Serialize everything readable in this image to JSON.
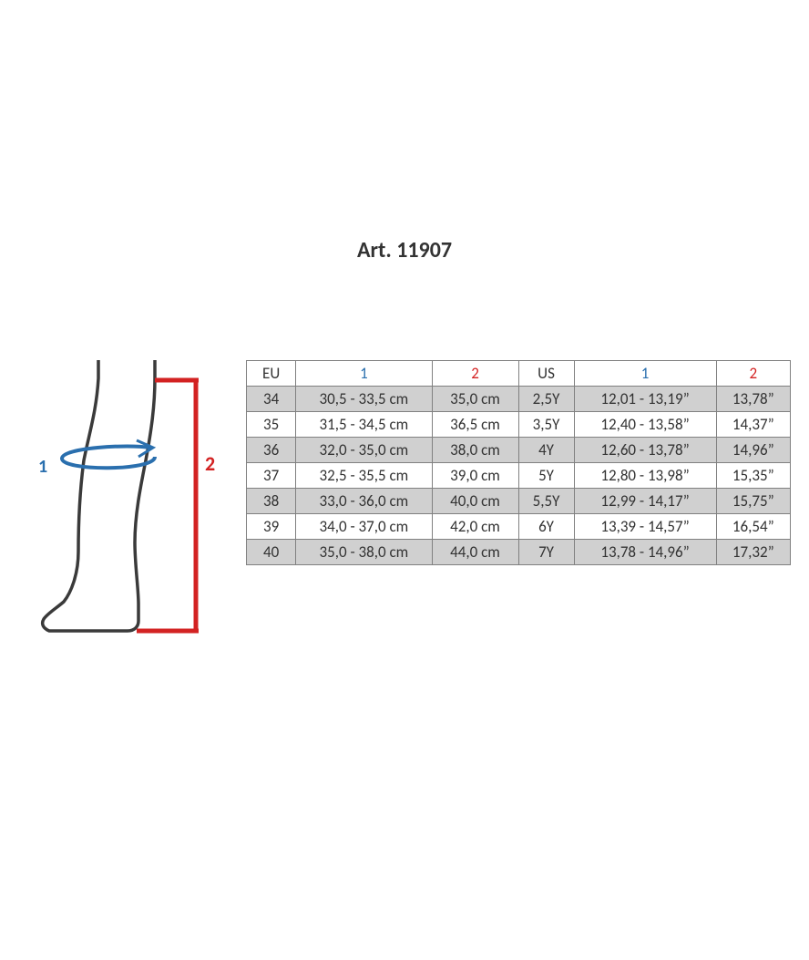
{
  "title": "Art. 11907",
  "diagram": {
    "label1": "1",
    "label2": "2",
    "outline_color": "#3a3a3a",
    "arrow_color": "#2a6fae",
    "height_color": "#d32222"
  },
  "table": {
    "header_text_color": "#333333",
    "header_blue": "#2a6fae",
    "header_red": "#d32222",
    "border_color": "#808080",
    "row_shade": "#d0d0d0",
    "columns": [
      {
        "label": "EU",
        "class": ""
      },
      {
        "label": "1",
        "class": "hdr-blue"
      },
      {
        "label": "2",
        "class": "hdr-red"
      },
      {
        "label": "US",
        "class": ""
      },
      {
        "label": "1",
        "class": "hdr-blue"
      },
      {
        "label": "2",
        "class": "hdr-red"
      }
    ],
    "rows": [
      {
        "shaded": true,
        "cells": [
          "34",
          "30,5 - 33,5 cm",
          "35,0 cm",
          "2,5Y",
          "12,01 - 13,19”",
          "13,78”"
        ]
      },
      {
        "shaded": false,
        "cells": [
          "35",
          "31,5 - 34,5 cm",
          "36,5 cm",
          "3,5Y",
          "12,40 - 13,58”",
          "14,37”"
        ]
      },
      {
        "shaded": true,
        "cells": [
          "36",
          "32,0 - 35,0 cm",
          "38,0 cm",
          "4Y",
          "12,60 - 13,78”",
          "14,96”"
        ]
      },
      {
        "shaded": false,
        "cells": [
          "37",
          "32,5 - 35,5 cm",
          "39,0 cm",
          "5Y",
          "12,80 - 13,98”",
          "15,35”"
        ]
      },
      {
        "shaded": true,
        "cells": [
          "38",
          "33,0 - 36,0 cm",
          "40,0 cm",
          "5,5Y",
          "12,99 - 14,17”",
          "15,75”"
        ]
      },
      {
        "shaded": false,
        "cells": [
          "39",
          "34,0 - 37,0 cm",
          "42,0 cm",
          "6Y",
          "13,39 - 14,57”",
          "16,54”"
        ]
      },
      {
        "shaded": true,
        "cells": [
          "40",
          "35,0 - 38,0 cm",
          "44,0 cm",
          "7Y",
          "13,78 - 14,96”",
          "17,32”"
        ]
      }
    ]
  }
}
